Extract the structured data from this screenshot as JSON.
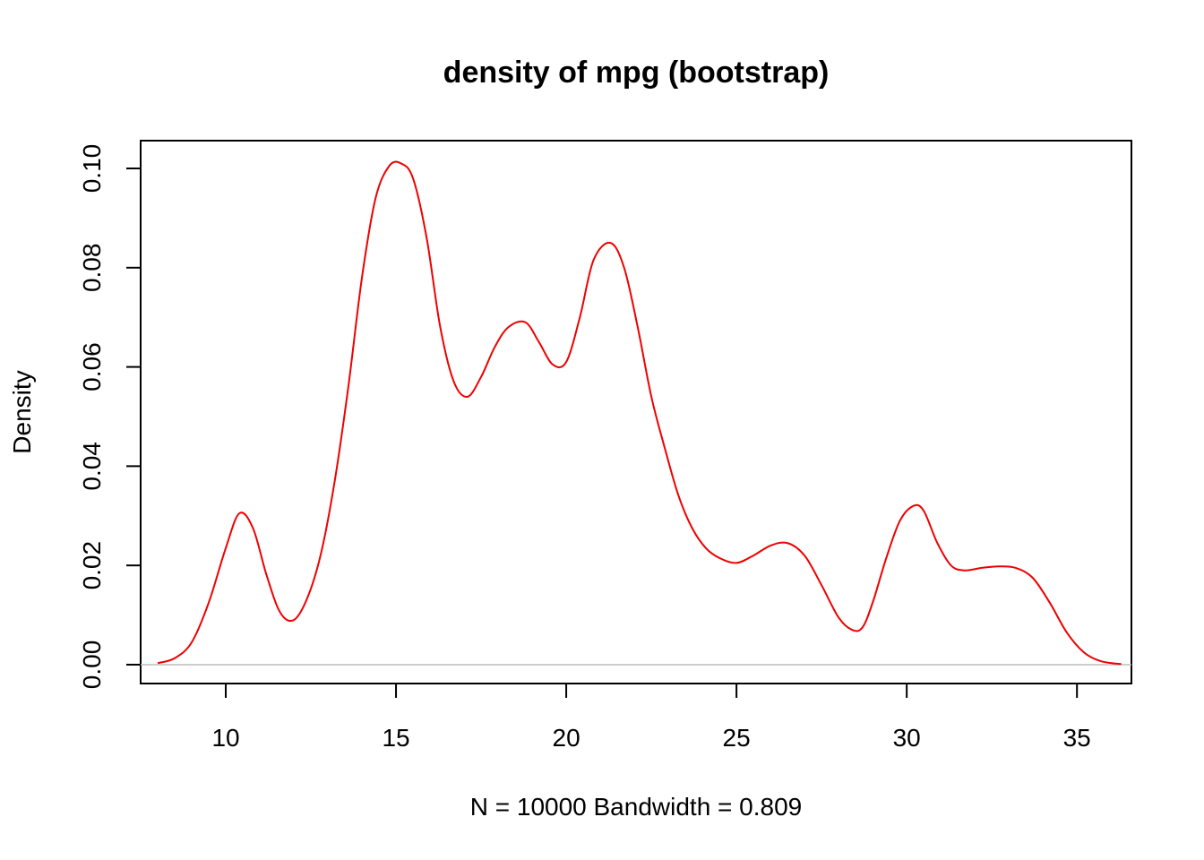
{
  "chart_data": {
    "type": "line",
    "title": "density of mpg (bootstrap)",
    "xlabel": "N = 10000   Bandwidth = 0.809",
    "ylabel": "Density",
    "xlim": [
      7.5,
      36.6
    ],
    "ylim": [
      -0.0038,
      0.1056
    ],
    "x_ticks": [
      10,
      15,
      20,
      25,
      30,
      35
    ],
    "x_tick_labels": [
      "10",
      "15",
      "20",
      "25",
      "30",
      "35"
    ],
    "y_ticks": [
      0.0,
      0.02,
      0.04,
      0.06,
      0.08,
      0.1
    ],
    "y_tick_labels": [
      "0.00",
      "0.02",
      "0.04",
      "0.06",
      "0.08",
      "0.10"
    ],
    "zero_line": true,
    "grid": false,
    "legend": false,
    "colors": {
      "line": "#ee0000",
      "zero_line": "#bebebe",
      "frame": "#000000"
    },
    "series": [
      {
        "x": [
          8.0,
          8.5,
          9.0,
          9.5,
          10.0,
          10.4,
          10.8,
          11.2,
          11.6,
          12.0,
          12.4,
          12.8,
          13.2,
          13.6,
          14.0,
          14.4,
          14.8,
          15.15,
          15.5,
          15.9,
          16.3,
          16.7,
          17.1,
          17.5,
          17.9,
          18.3,
          18.8,
          19.2,
          19.6,
          20.0,
          20.4,
          20.8,
          21.3,
          21.7,
          22.1,
          22.5,
          22.9,
          23.3,
          23.7,
          24.1,
          24.5,
          25.0,
          25.5,
          26.0,
          26.5,
          27.0,
          27.5,
          28.0,
          28.4,
          28.7,
          29.0,
          29.4,
          29.8,
          30.2,
          30.5,
          30.9,
          31.3,
          31.7,
          32.2,
          32.7,
          33.2,
          33.7,
          34.2,
          34.7,
          35.2,
          35.7,
          36.3
        ],
        "y": [
          0.0003,
          0.0013,
          0.0045,
          0.0125,
          0.0235,
          0.0305,
          0.0275,
          0.018,
          0.0105,
          0.009,
          0.0135,
          0.0225,
          0.037,
          0.056,
          0.078,
          0.094,
          0.1005,
          0.101,
          0.098,
          0.086,
          0.068,
          0.057,
          0.054,
          0.058,
          0.064,
          0.068,
          0.069,
          0.065,
          0.0605,
          0.061,
          0.07,
          0.0815,
          0.085,
          0.08,
          0.068,
          0.054,
          0.0435,
          0.034,
          0.0275,
          0.0235,
          0.0215,
          0.0205,
          0.022,
          0.024,
          0.0245,
          0.022,
          0.016,
          0.0095,
          0.007,
          0.0075,
          0.0125,
          0.0215,
          0.029,
          0.032,
          0.031,
          0.0245,
          0.02,
          0.019,
          0.0195,
          0.0198,
          0.0195,
          0.0175,
          0.0125,
          0.0065,
          0.0025,
          0.0007,
          0.0001
        ]
      }
    ]
  }
}
